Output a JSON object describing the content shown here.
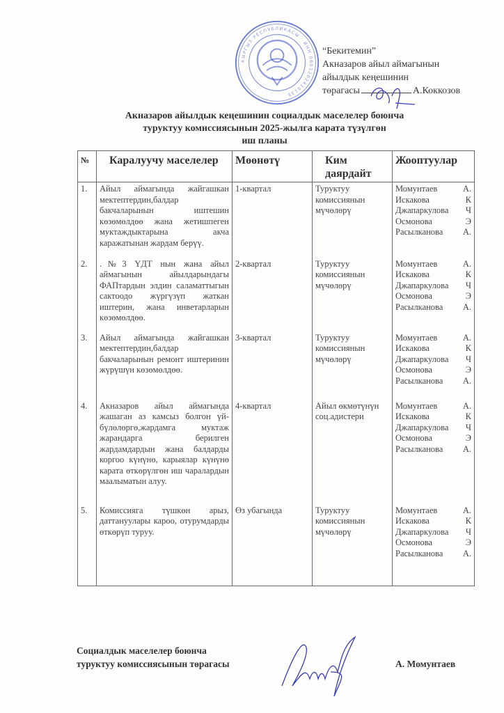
{
  "approval": {
    "heading": "“Бекитемин”",
    "line1": "Акназаров  айыл  аймагынын",
    "line2": "айылдык  кеңешинин",
    "line3_prefix": "төрагасы",
    "signer": "А.Коккозов"
  },
  "stamp": {
    "text": "КЫРГЫЗ РЕСПУБЛИКАСЫ · ИНН 0803202410135"
  },
  "title": {
    "line1": "Акназаров  айылдык  кеңешинин  социалдык  маселелер   боюнча",
    "line2": "туруктуу  комиссиясынын 2025-жылга  карата түзүлгөн",
    "line3": "иш  планы"
  },
  "table": {
    "headers": [
      "№",
      "Каралуучу  маселелер",
      "Мөөнөтү",
      "Ким даярдайт",
      "Жооптуулар"
    ],
    "rows": [
      {
        "num": "1.",
        "issue": "Айыл аймагында жайгашкан мектептердин,балдар бакчаларынын иштешин көзөмөлдөө жана жетишпеген муктаждыктарына акча каражатынан жардам берүү.",
        "term": "1-квартал",
        "who": "Туруктуу комиссиянын мүчөлөрү",
        "responsible": [
          "Момунтаев  А.",
          "Искакова        К",
          "Джапаркулова Ч",
          " Осмонова      Э",
          "Расылканова А."
        ]
      },
      {
        "num": "2.",
        "issue": ".№3 ҮДТ нын жана айыл аймагынын айылдарындагы ФАПтардын элдин саламаттыгын сактоодо жүргүзүп жаткан иштерин, жана инветарларын көзөмөлдөө.",
        "term": "2-квартал",
        "who": "Туруктуу комиссиянын мүчөлөрү",
        "responsible": [
          "Момунтаев  А.",
          "Искакова        К",
          "Джапаркулова Ч",
          " Осмонова      Э",
          "Расылканова А."
        ]
      },
      {
        "num": "3.",
        "issue": "Айыл аймагында жайгашкан мектептердин,балдар бакчаларынын ремонт иштеринин жүрүшүн көзөмөлдөө.",
        "term": "3-квартал",
        "who": "Туруктуу комиссиянын мүчөлөрү",
        "responsible": [
          "Момунтаев  А.",
          "Искакова        К",
          "Джапаркулова Ч",
          " Осмонова      Э",
          "Расылканова А."
        ]
      },
      {
        "num": "4.",
        "issue": "Акназаров айыл аймагында жашаган аз камсыз болгон үй-бүлөлөргө,жардамга муктаж жарандарга берилген жардамдардын жана балдарды коргоо күнүнө, карыялар күнүнө карата өткөрүлгөн иш чаралардын маалыматын алуу.",
        "term": "4-квартал",
        "who": "Айыл өкмөтүнүн соц.адистери",
        "responsible": [
          "Момунтаев  А.",
          "Искакова        К",
          "Джапаркулова Ч",
          " Осмонова      Э",
          "Расылканова А."
        ]
      },
      {
        "num": "5.",
        "issue": "Комиссияга түшкөн арыз, даттануулары кароо, отурумдарды өткөрүп туруу.",
        "term": "Өз убагында",
        "who": "Туруктуу комиссиянын мүчөлөрү",
        "responsible": [
          "Момунтаев  А.",
          "Искакова        К",
          "Джапаркулова Ч",
          " Осмонова      Э",
          "Расылканова А."
        ]
      }
    ]
  },
  "footer": {
    "line1": "Социалдык  маселелер  боюнча",
    "line2": "туруктуу  комиссиясынын  төрагасы",
    "name": "А. Момунтаев"
  },
  "colors": {
    "stamp": "#3a4fc4",
    "signature": "#3b3fb8",
    "text": "#333333"
  }
}
